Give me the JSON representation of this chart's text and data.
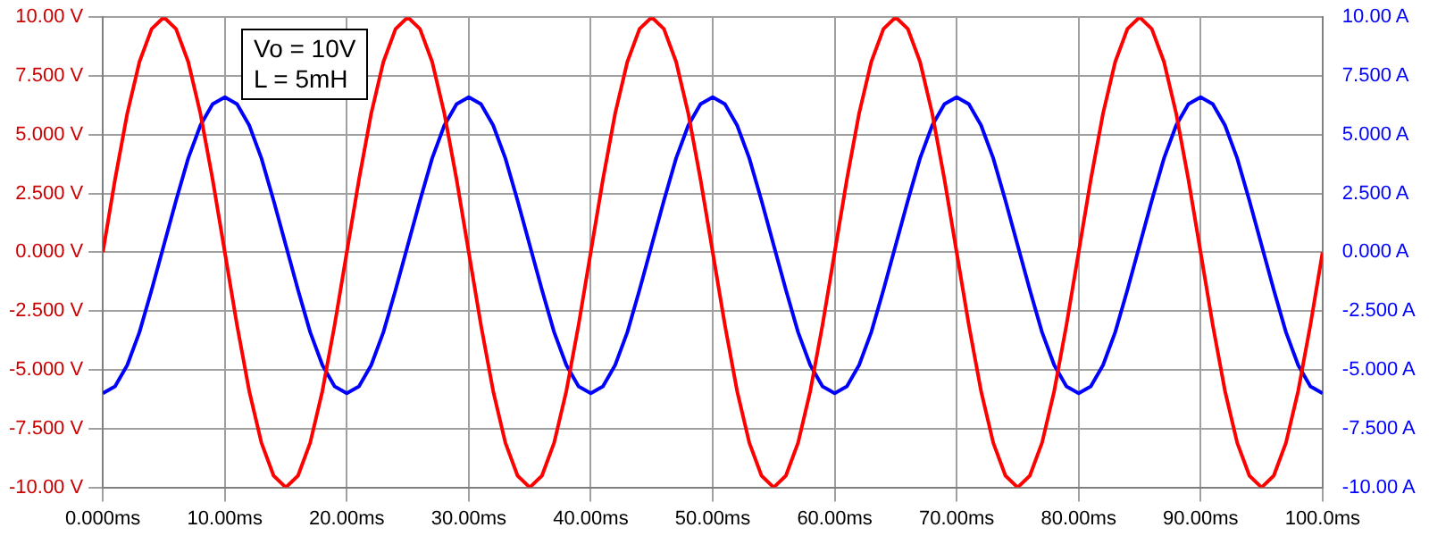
{
  "chart_data": {
    "type": "line",
    "x": [
      0,
      1,
      2,
      3,
      4,
      5,
      6,
      7,
      8,
      9,
      10,
      11,
      12,
      13,
      14,
      15,
      16,
      17,
      18,
      19,
      20,
      21,
      22,
      23,
      24,
      25,
      26,
      27,
      28,
      29,
      30,
      31,
      32,
      33,
      34,
      35,
      36,
      37,
      38,
      39,
      40,
      41,
      42,
      43,
      44,
      45,
      46,
      47,
      48,
      49,
      50,
      51,
      52,
      53,
      54,
      55,
      56,
      57,
      58,
      59,
      60,
      61,
      62,
      63,
      64,
      65,
      66,
      67,
      68,
      69,
      70,
      71,
      72,
      73,
      74,
      75,
      76,
      77,
      78,
      79,
      80,
      81,
      82,
      83,
      84,
      85,
      86,
      87,
      88,
      89,
      90,
      91,
      92,
      93,
      94,
      95,
      96,
      97,
      98,
      99,
      100
    ],
    "series": [
      {
        "color": "#ff0000",
        "values": [
          0,
          3.1,
          5.9,
          8.1,
          9.5,
          10,
          9.5,
          8.1,
          5.9,
          3.1,
          0,
          -3.1,
          -5.9,
          -8.1,
          -9.5,
          -10,
          -9.5,
          -8.1,
          -5.9,
          -3.1,
          0,
          3.1,
          5.9,
          8.1,
          9.5,
          10,
          9.5,
          8.1,
          5.9,
          3.1,
          0,
          -3.1,
          -5.9,
          -8.1,
          -9.5,
          -10,
          -9.5,
          -8.1,
          -5.9,
          -3.1,
          0,
          3.1,
          5.9,
          8.1,
          9.5,
          10,
          9.5,
          8.1,
          5.9,
          3.1,
          0,
          -3.1,
          -5.9,
          -8.1,
          -9.5,
          -10,
          -9.5,
          -8.1,
          -5.9,
          -3.1,
          0,
          3.1,
          5.9,
          8.1,
          9.5,
          10,
          9.5,
          8.1,
          5.9,
          3.1,
          0,
          -3.1,
          -5.9,
          -8.1,
          -9.5,
          -10,
          -9.5,
          -8.1,
          -5.9,
          -3.1,
          0,
          3.1,
          5.9,
          8.1,
          9.5,
          10,
          9.5,
          8.1,
          5.9,
          3.1,
          0,
          -3.1,
          -5.9,
          -8.1,
          -9.5,
          -10,
          -9.5,
          -8.1,
          -5.9,
          -3.1,
          0
        ]
      },
      {
        "color": "#0000ff",
        "axis": "y2",
        "values": [
          -6.0,
          -5.7,
          -4.8,
          -3.4,
          -1.6,
          0.3,
          2.2,
          4.0,
          5.4,
          6.3,
          6.6,
          6.3,
          5.4,
          4.0,
          2.2,
          0.3,
          -1.6,
          -3.4,
          -4.8,
          -5.7,
          -6.0,
          -5.7,
          -4.8,
          -3.4,
          -1.6,
          0.3,
          2.2,
          4.0,
          5.4,
          6.3,
          6.6,
          6.3,
          5.4,
          4.0,
          2.2,
          0.3,
          -1.6,
          -3.4,
          -4.8,
          -5.7,
          -6.0,
          -5.7,
          -4.8,
          -3.4,
          -1.6,
          0.3,
          2.2,
          4.0,
          5.4,
          6.3,
          6.6,
          6.3,
          5.4,
          4.0,
          2.2,
          0.3,
          -1.6,
          -3.4,
          -4.8,
          -5.7,
          -6.0,
          -5.7,
          -4.8,
          -3.4,
          -1.6,
          0.3,
          2.2,
          4.0,
          5.4,
          6.3,
          6.6,
          6.3,
          5.4,
          4.0,
          2.2,
          0.3,
          -1.6,
          -3.4,
          -4.8,
          -5.7,
          -6.0,
          -5.7,
          -4.8,
          -3.4,
          -1.6,
          0.3,
          2.2,
          4.0,
          5.4,
          6.3,
          6.6,
          6.3,
          5.4,
          4.0,
          2.2,
          0.3,
          -1.6,
          -3.4,
          -4.8,
          -5.7,
          -6.0
        ]
      }
    ],
    "xlim": [
      0,
      100
    ],
    "xticks": [
      {
        "value": 0,
        "label": "0.000ms"
      },
      {
        "value": 10,
        "label": "10.00ms"
      },
      {
        "value": 20,
        "label": "20.00ms"
      },
      {
        "value": 30,
        "label": "30.00ms"
      },
      {
        "value": 40,
        "label": "40.00ms"
      },
      {
        "value": 50,
        "label": "50.00ms"
      },
      {
        "value": 60,
        "label": "60.00ms"
      },
      {
        "value": 70,
        "label": "70.00ms"
      },
      {
        "value": 80,
        "label": "80.00ms"
      },
      {
        "value": 90,
        "label": "90.00ms"
      },
      {
        "value": 100,
        "label": "100.0ms"
      }
    ],
    "ylim": [
      -10,
      10
    ],
    "yticks": [
      {
        "value": -10,
        "label": "-10.00 V"
      },
      {
        "value": -7.5,
        "label": "-7.500 V"
      },
      {
        "value": -5,
        "label": "-5.000 V"
      },
      {
        "value": -2.5,
        "label": "-2.500 V"
      },
      {
        "value": 0,
        "label": "0.000 V"
      },
      {
        "value": 2.5,
        "label": "2.500 V"
      },
      {
        "value": 5,
        "label": "5.000 V"
      },
      {
        "value": 7.5,
        "label": "7.500 V"
      },
      {
        "value": 10,
        "label": "10.00 V"
      }
    ],
    "y2lim": [
      -10,
      10
    ],
    "y2ticks": [
      {
        "value": -10,
        "label": "-10.00 A"
      },
      {
        "value": -7.5,
        "label": "-7.500 A"
      },
      {
        "value": -5,
        "label": "-5.000 A"
      },
      {
        "value": -2.5,
        "label": "-2.500 A"
      },
      {
        "value": 0,
        "label": "0.000 A"
      },
      {
        "value": 2.5,
        "label": "2.500 A"
      },
      {
        "value": 5,
        "label": "5.000 A"
      },
      {
        "value": 7.5,
        "label": "7.500 A"
      },
      {
        "value": 10,
        "label": "10.00 A"
      }
    ],
    "annotations": [
      "Vo = 10V",
      "L = 5mH"
    ],
    "grid": true,
    "legend": false,
    "marker": "none",
    "line_style": "solid"
  }
}
